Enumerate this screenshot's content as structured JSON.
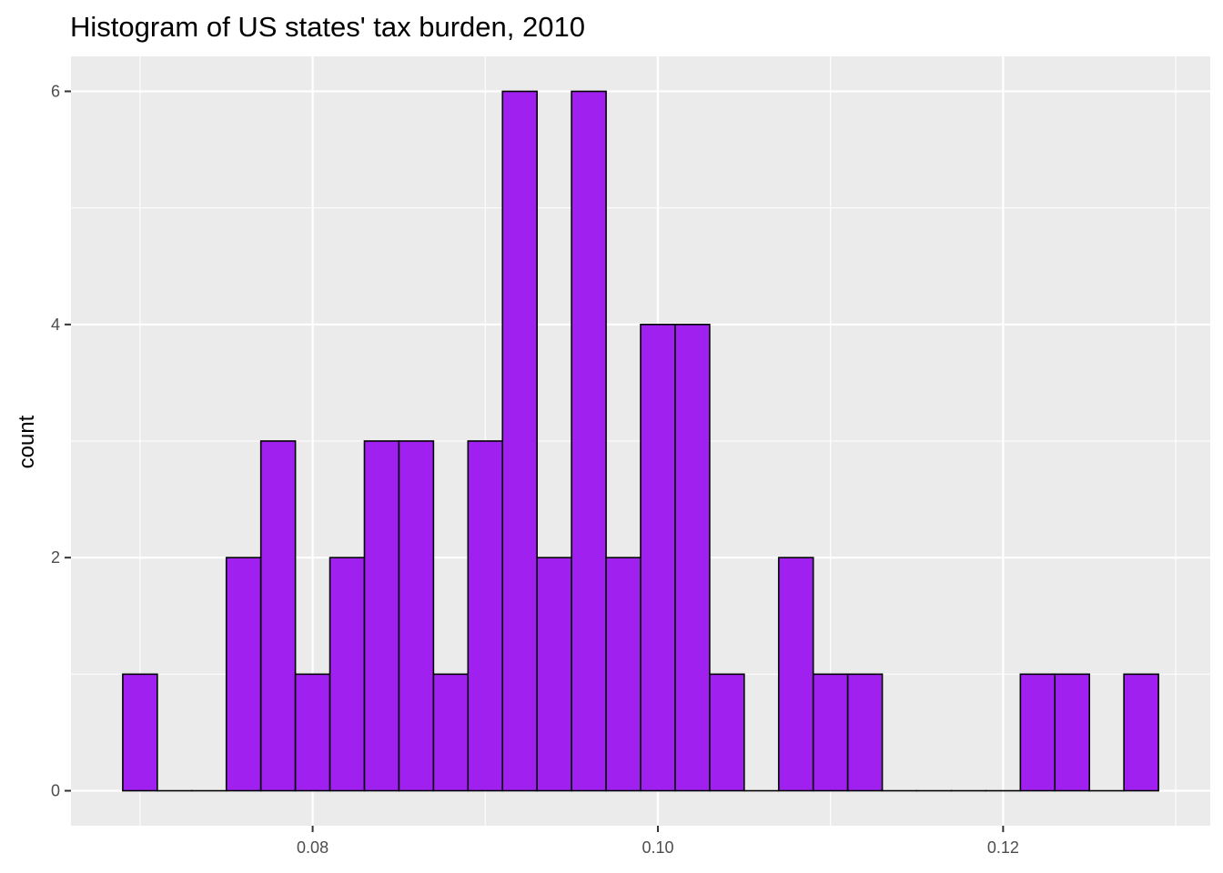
{
  "chart_data": {
    "type": "bar",
    "title": "Histogram of US states' tax burden, 2010",
    "xlabel": "",
    "ylabel": "count",
    "bin_width": 0.002,
    "bin_starts": [
      0.069,
      0.071,
      0.073,
      0.075,
      0.077,
      0.079,
      0.081,
      0.083,
      0.085,
      0.087,
      0.089,
      0.091,
      0.093,
      0.095,
      0.097,
      0.099,
      0.101,
      0.103,
      0.105,
      0.107,
      0.109,
      0.111,
      0.113,
      0.115,
      0.117,
      0.119,
      0.121,
      0.123,
      0.125,
      0.127
    ],
    "values": [
      1,
      0,
      0,
      2,
      3,
      1,
      2,
      3,
      3,
      1,
      3,
      6,
      2,
      6,
      2,
      4,
      4,
      1,
      0,
      2,
      1,
      1,
      0,
      0,
      0,
      0,
      1,
      1,
      0,
      1
    ],
    "xlim": [
      0.066,
      0.132
    ],
    "ylim": [
      -0.3,
      6.3
    ],
    "x_ticks": [
      0.08,
      0.1,
      0.12
    ],
    "x_tick_labels": [
      "0.08",
      "0.10",
      "0.12"
    ],
    "y_ticks": [
      0,
      2,
      4,
      6
    ],
    "y_tick_labels": [
      "0",
      "2",
      "4",
      "6"
    ],
    "grid": true,
    "legend": "none",
    "colors": {
      "bar_fill": "#a020f0",
      "bar_outline": "#000000",
      "panel_background": "#ebebeb",
      "grid": "#ffffff"
    }
  }
}
